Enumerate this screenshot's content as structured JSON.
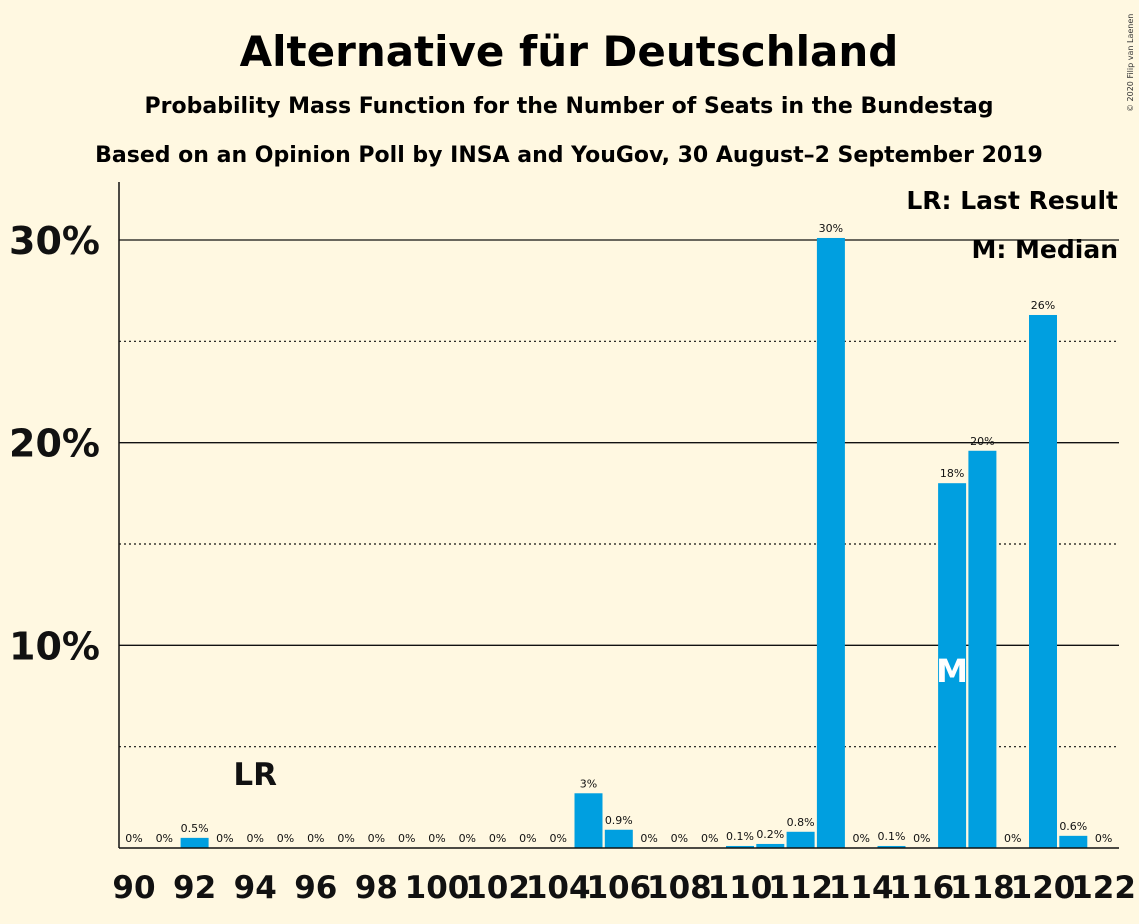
{
  "chart_data": {
    "type": "bar",
    "title": "Alternative für Deutschland",
    "subtitle": "Probability Mass Function for the Number of Seats in the Bundestag",
    "subtitle2": "Based on an Opinion Poll by INSA and YouGov, 30 August–2 September 2019",
    "credit": "© 2020 Filip van Laenen",
    "legend": {
      "lr": "LR: Last Result",
      "median": "M: Median",
      "placement": "top-right"
    },
    "x": [
      90,
      91,
      92,
      93,
      94,
      95,
      96,
      97,
      98,
      99,
      100,
      101,
      102,
      103,
      104,
      105,
      106,
      107,
      108,
      109,
      110,
      111,
      112,
      113,
      114,
      115,
      116,
      117,
      118,
      119,
      120,
      121,
      122
    ],
    "values": [
      0,
      0,
      0.5,
      0,
      0,
      0,
      0,
      0,
      0,
      0,
      0,
      0,
      0,
      0,
      0,
      2.7,
      0.9,
      0,
      0,
      0,
      0.1,
      0.2,
      0.8,
      30.1,
      0,
      0.1,
      0,
      18,
      19.6,
      0,
      26.3,
      0.6,
      0
    ],
    "labels": [
      "0%",
      "0%",
      "0.5%",
      "0%",
      "0%",
      "0%",
      "0%",
      "0%",
      "0%",
      "0%",
      "0%",
      "0%",
      "0%",
      "0%",
      "0%",
      "3%",
      "0.9%",
      "0%",
      "0%",
      "0%",
      "0.1%",
      "0.2%",
      "0.8%",
      "30%",
      "0%",
      "0.1%",
      "0%",
      "18%",
      "20%",
      "0%",
      "26%",
      "0.6%",
      "0%"
    ],
    "xticks": [
      "90",
      "92",
      "94",
      "96",
      "98",
      "100",
      "102",
      "104",
      "106",
      "108",
      "110",
      "112",
      "114",
      "116",
      "118",
      "120",
      "122"
    ],
    "yticks": [
      "10%",
      "20%",
      "30%"
    ],
    "ylim": [
      0,
      33
    ],
    "last_result": {
      "seat": 94,
      "label": "LR"
    },
    "median": {
      "seat": 117,
      "label": "M"
    },
    "bar_color": "#009FE0",
    "grid": "solid at 10% steps, dotted at 5% steps"
  }
}
